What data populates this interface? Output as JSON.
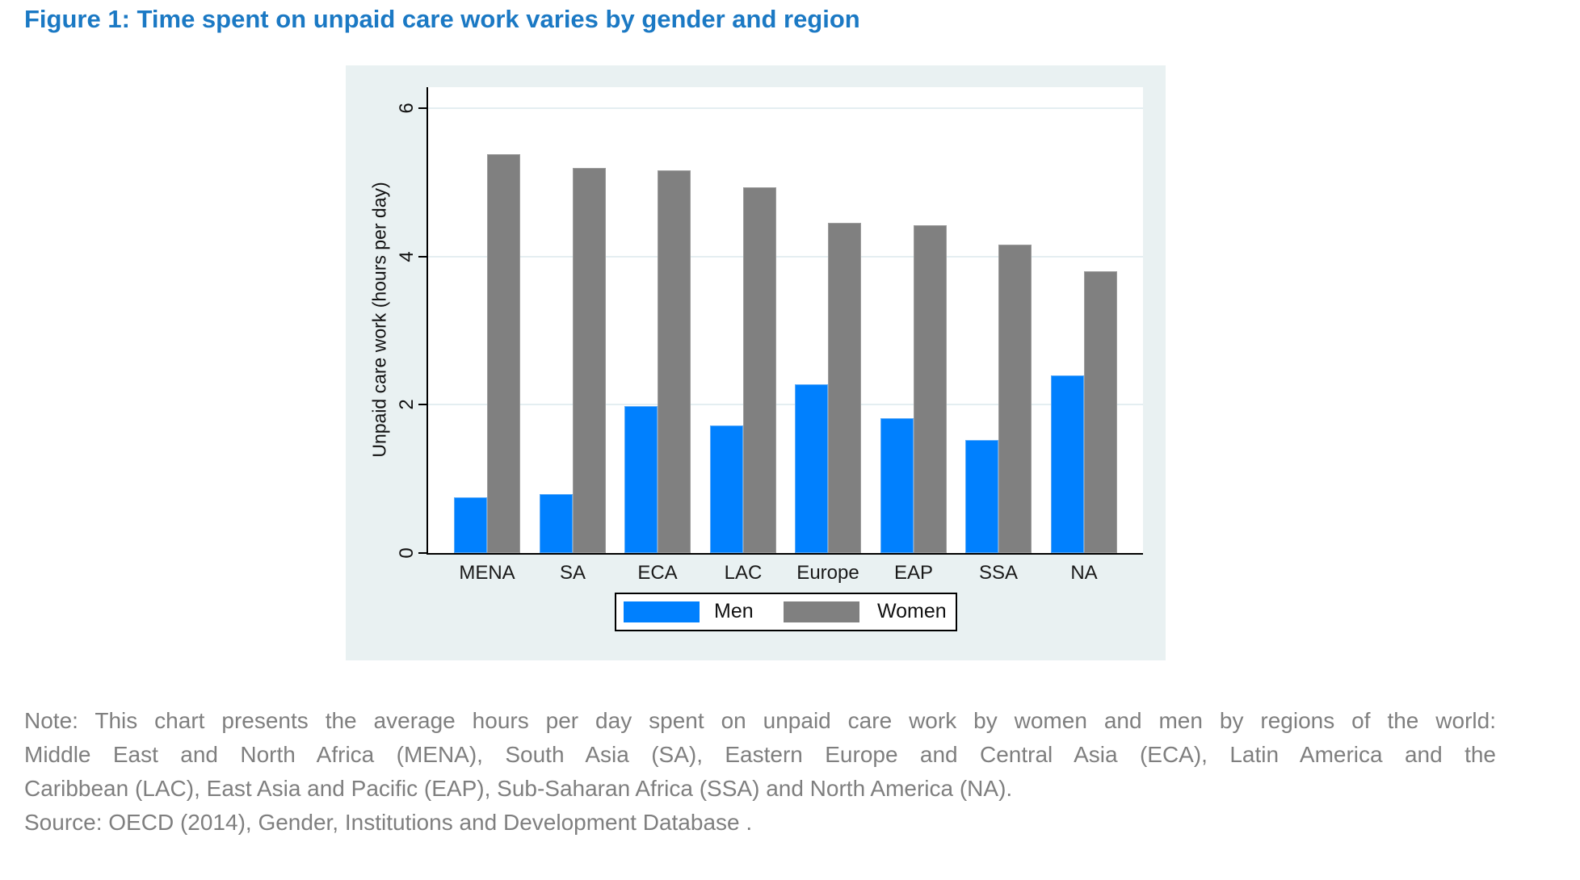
{
  "figure": {
    "title": "Figure 1: Time spent on unpaid care work varies by gender and region",
    "title_color": "#1b79c4"
  },
  "chart_data": {
    "type": "bar",
    "categories": [
      "MENA",
      "SA",
      "ECA",
      "LAC",
      "Europe",
      "EAP",
      "SSA",
      "NA"
    ],
    "series": [
      {
        "name": "Men",
        "color": "#0080fe",
        "values": [
          0.75,
          0.8,
          1.98,
          1.72,
          2.28,
          1.82,
          1.53,
          2.4
        ]
      },
      {
        "name": "Women",
        "color": "#808080",
        "values": [
          5.38,
          5.2,
          5.16,
          4.94,
          4.45,
          4.42,
          4.16,
          3.8
        ]
      }
    ],
    "title": "",
    "xlabel": "",
    "ylabel": "Unpaid care work (hours per day)",
    "yticks": [
      0,
      2,
      4,
      6
    ],
    "ylim": [
      0,
      6.3
    ],
    "grid": true,
    "legend_position": "bottom",
    "plot_background": "#ffffff",
    "outer_background": "#e9f1f2",
    "gridline_color": "#e4eef1"
  },
  "note": {
    "lines": [
      "Note: This chart presents the average hours per day spent on unpaid care work by women and men by regions of the world:",
      "Middle East and North Africa (MENA), South Asia (SA), Eastern Europe and Central Asia (ECA), Latin America and the",
      "Caribbean (LAC), East Asia and Pacific (EAP), Sub-Saharan Africa (SSA) and North America (NA)."
    ],
    "source": "Source: OECD (2014), Gender, Institutions and Development Database ."
  }
}
